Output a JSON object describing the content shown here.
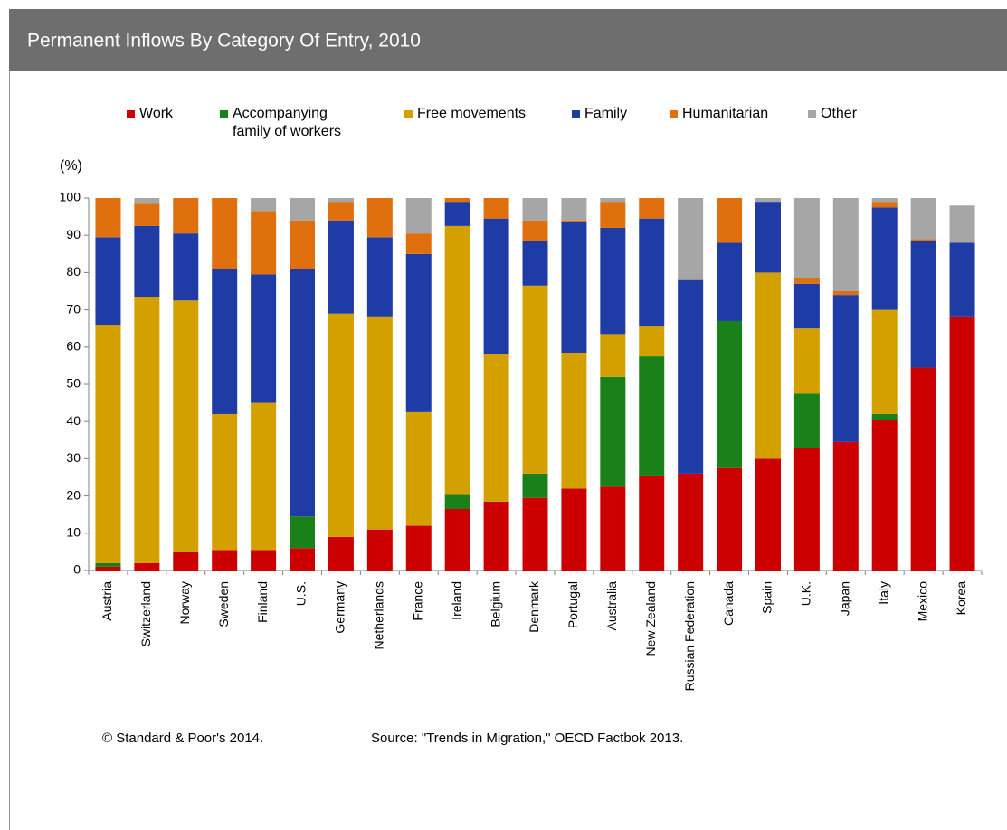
{
  "chart_data": {
    "type": "stacked_bar",
    "title": "Permanent Inflows By Category Of Entry, 2010",
    "y_label": "(%)",
    "categories": [
      "Austria",
      "Switzerland",
      "Norway",
      "Sweden",
      "Finland",
      "U.S.",
      "Germany",
      "Netherlands",
      "France",
      "Ireland",
      "Belgium",
      "Denmark",
      "Portugal",
      "Australia",
      "New Zealand",
      "Russian Federation",
      "Canada",
      "Spain",
      "U.K.",
      "Japan",
      "Italy",
      "Mexico",
      "Korea"
    ],
    "series": [
      {
        "name": "Work",
        "color": "#cc0000",
        "values": [
          1,
          2,
          5,
          5.5,
          5.5,
          6,
          9,
          11,
          12,
          16.5,
          18.5,
          19.5,
          22,
          22.5,
          25.5,
          26,
          27.5,
          30,
          33,
          34.5,
          40.5,
          54.5,
          68
        ]
      },
      {
        "name": "Accompanying family of workers",
        "color": "#1a801a",
        "values": [
          1,
          0,
          0,
          0,
          0,
          8.5,
          0,
          0,
          0,
          4,
          0,
          6.5,
          0,
          29.5,
          32,
          0,
          39.5,
          0,
          14.5,
          0,
          1.5,
          0,
          0
        ]
      },
      {
        "name": "Free movements",
        "color": "#d4a000",
        "values": [
          64,
          71.5,
          67.5,
          36.5,
          39.5,
          0,
          60,
          57,
          30.5,
          72,
          39.5,
          50.5,
          36.5,
          11.5,
          8,
          0,
          0,
          50,
          17.5,
          0,
          28,
          0,
          0
        ]
      },
      {
        "name": "Family",
        "color": "#1f3ca6",
        "values": [
          23.5,
          19,
          18,
          39,
          34.5,
          66.5,
          25,
          21.5,
          42.5,
          6.5,
          36.5,
          12,
          35,
          28.5,
          29,
          52,
          21,
          19,
          12,
          39.5,
          27.5,
          34,
          20
        ]
      },
      {
        "name": "Humanitarian",
        "color": "#e0700e",
        "values": [
          10.5,
          6,
          9.5,
          19,
          17,
          13,
          5,
          10.5,
          5.5,
          1,
          5.5,
          5.5,
          0.5,
          7,
          5.5,
          0,
          12,
          0,
          1.5,
          1,
          1.5,
          0.5,
          0
        ]
      },
      {
        "name": "Other",
        "color": "#a6a6a6",
        "values": [
          0,
          1.5,
          0,
          0,
          3.5,
          6,
          1,
          0,
          9.5,
          0,
          0,
          6,
          6,
          1,
          0,
          22,
          0,
          1,
          21.5,
          25,
          1,
          11,
          10
        ]
      }
    ],
    "ylim": [
      0,
      100
    ],
    "yticks": [
      0,
      10,
      20,
      30,
      40,
      50,
      60,
      70,
      80,
      90,
      100
    ],
    "footer": [
      "© Standard & Poor's 2014.",
      "Source: \"Trends in Migration,\" OECD Factbok 2013."
    ]
  }
}
